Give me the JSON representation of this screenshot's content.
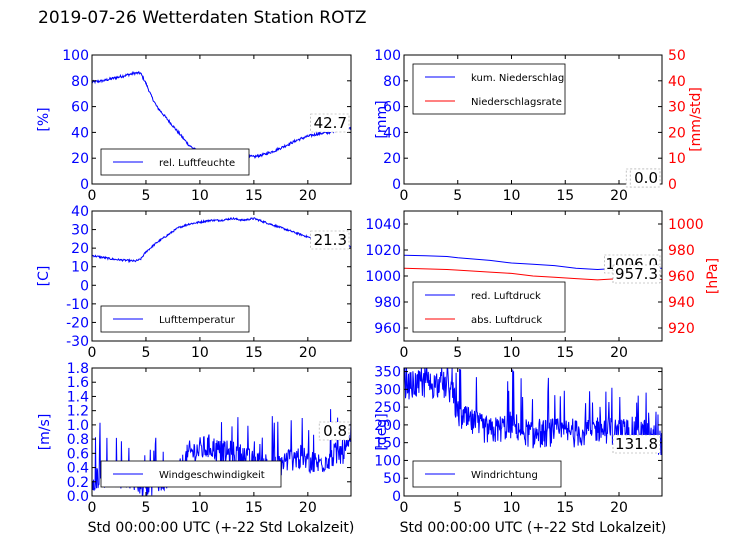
{
  "figure": {
    "title": "2019-07-26 Wetterdaten Station ROTZ",
    "xlabel_left": "Std 00:00:00 UTC (+-22 Std Lokalzeit)",
    "xlabel_right": "Std 00:00:00 UTC (+-22 Std Lokalzeit)"
  },
  "colors": {
    "primary": "#0000ff",
    "secondary": "#ff0000",
    "axis": "#000000"
  },
  "chart_data": [
    {
      "type": "line",
      "panel": "humidity",
      "ylabel": "[%]",
      "ylim": [
        0,
        100
      ],
      "xlim": [
        0,
        24
      ],
      "xticks": [
        0,
        5,
        10,
        15,
        20
      ],
      "yticks": [
        0,
        20,
        40,
        60,
        80,
        100
      ],
      "legend": [
        "rel. Luftfeuchte"
      ],
      "legend_position": "lower-left",
      "current_value": "42.7",
      "series": [
        {
          "name": "rel. Luftfeuchte",
          "color": "#0000ff",
          "noise": 1.0,
          "x": [
            0,
            1,
            2,
            3,
            4,
            4.5,
            5,
            5.5,
            6,
            7,
            8,
            9,
            10,
            11,
            12,
            13,
            14,
            15,
            16,
            17,
            18,
            19,
            20,
            21,
            22,
            23,
            24
          ],
          "y": [
            79,
            80,
            82,
            84,
            86,
            86,
            78,
            68,
            60,
            50,
            40,
            30,
            24,
            23,
            24,
            25,
            22,
            21,
            23,
            26,
            30,
            34,
            37,
            39,
            40,
            43,
            43
          ]
        }
      ]
    },
    {
      "type": "line",
      "panel": "precipitation",
      "ylabel": "[mm]",
      "ylim": [
        0,
        100
      ],
      "xlim": [
        0,
        24
      ],
      "xticks": [
        0,
        5,
        10,
        15,
        20
      ],
      "yticks": [
        0,
        20,
        40,
        60,
        80,
        100
      ],
      "y2label": "[mm/std]",
      "y2lim": [
        0,
        50
      ],
      "y2ticks": [
        0,
        10,
        20,
        30,
        40,
        50
      ],
      "legend": [
        "kum. Niederschlag",
        "Niederschlagsrate"
      ],
      "legend_position": "upper-left",
      "current_value": "0.0",
      "current_value_2": "0.0",
      "series": [
        {
          "name": "kum. Niederschlag",
          "color": "#0000ff",
          "x": [
            0,
            24
          ],
          "y": [
            0,
            0
          ]
        },
        {
          "name": "Niederschlagsrate",
          "color": "#ff0000",
          "axis": "right",
          "x": [
            0,
            24
          ],
          "y": [
            0,
            0
          ]
        }
      ]
    },
    {
      "type": "line",
      "panel": "temperature",
      "ylabel": "[C]",
      "ylim": [
        -30,
        40
      ],
      "xlim": [
        0,
        24
      ],
      "xticks": [
        0,
        5,
        10,
        15,
        20
      ],
      "yticks": [
        -30,
        -20,
        -10,
        0,
        10,
        20,
        30,
        40
      ],
      "legend": [
        "Lufttemperatur"
      ],
      "legend_position": "lower-left",
      "current_value": "21.3",
      "series": [
        {
          "name": "Lufttemperatur",
          "color": "#0000ff",
          "noise": 0.5,
          "x": [
            0,
            1,
            2,
            3,
            4,
            4.5,
            5,
            6,
            7,
            8,
            9,
            10,
            11,
            12,
            13,
            14,
            15,
            16,
            17,
            18,
            19,
            20,
            21,
            22,
            23,
            24
          ],
          "y": [
            16,
            15,
            14,
            13.5,
            13,
            14,
            18,
            23,
            27,
            31,
            33,
            34,
            35,
            35,
            36,
            35,
            36,
            34,
            32,
            30,
            28,
            26,
            24,
            23,
            22,
            21
          ]
        }
      ]
    },
    {
      "type": "line",
      "panel": "pressure",
      "ylabel": "[hPa]",
      "ylabel_side": "right",
      "ylim": [
        950,
        1050
      ],
      "xlim": [
        0,
        24
      ],
      "xticks": [
        0,
        5,
        10,
        15,
        20
      ],
      "yticks": [
        960,
        980,
        1000,
        1020,
        1040
      ],
      "y2lim": [
        910,
        1010
      ],
      "y2ticks": [
        920,
        940,
        960,
        980,
        1000
      ],
      "legend": [
        "red. Luftdruck",
        "abs. Luftdruck"
      ],
      "legend_position": "lower-left",
      "current_value": "1006.0",
      "current_value_2": "957.3",
      "series": [
        {
          "name": "red. Luftdruck",
          "color": "#0000ff",
          "x": [
            0,
            2,
            4,
            5,
            8,
            10,
            12,
            14,
            16,
            18,
            20,
            22,
            24
          ],
          "y": [
            1016,
            1015.5,
            1015,
            1014,
            1012,
            1010,
            1009,
            1008,
            1006,
            1005,
            1006,
            1006,
            1006
          ]
        },
        {
          "name": "abs. Luftdruck",
          "color": "#ff0000",
          "axis": "right",
          "x": [
            0,
            2,
            4,
            5,
            8,
            10,
            12,
            14,
            16,
            18,
            20,
            22,
            24
          ],
          "y": [
            966,
            965.5,
            965,
            964.5,
            963,
            962,
            960,
            959,
            958,
            957,
            958,
            958,
            957.3
          ]
        }
      ]
    },
    {
      "type": "line",
      "panel": "wind-speed",
      "ylabel": "[m/s]",
      "ylim": [
        0,
        1.8
      ],
      "xlim": [
        0,
        24
      ],
      "xticks": [
        0,
        5,
        10,
        15,
        20
      ],
      "yticks": [
        0.0,
        0.2,
        0.4,
        0.6,
        0.8,
        1.0,
        1.2,
        1.4,
        1.6,
        1.8
      ],
      "legend": [
        "Windgeschwindigkeit"
      ],
      "legend_position": "lower-left",
      "current_value": "0.8",
      "series": [
        {
          "name": "Windgeschwindigkeit",
          "color": "#0000ff",
          "noise": 0.18,
          "spiky": true,
          "x": [
            0,
            2,
            4,
            5,
            6,
            7,
            8,
            9,
            10,
            11,
            12,
            13,
            14,
            15,
            16,
            17,
            18,
            19,
            20,
            21,
            22,
            23,
            24
          ],
          "y": [
            0.25,
            0.3,
            0.25,
            0.15,
            0.2,
            0.25,
            0.3,
            0.6,
            0.65,
            0.7,
            0.6,
            0.6,
            0.55,
            0.45,
            0.45,
            0.4,
            0.5,
            0.55,
            0.5,
            0.45,
            0.55,
            0.6,
            0.7
          ]
        }
      ]
    },
    {
      "type": "line",
      "panel": "wind-direction",
      "ylabel": "[deg]",
      "ylim": [
        0,
        360
      ],
      "xlim": [
        0,
        24
      ],
      "xticks": [
        0,
        5,
        10,
        15,
        20
      ],
      "yticks": [
        0,
        50,
        100,
        150,
        200,
        250,
        300,
        350
      ],
      "legend": [
        "Windrichtung"
      ],
      "legend_position": "lower-left",
      "current_value": "131.8",
      "series": [
        {
          "name": "Windrichtung",
          "color": "#0000ff",
          "noise": 40,
          "spiky": true,
          "x": [
            0,
            2,
            4,
            4.5,
            5,
            6,
            8,
            10,
            12,
            14,
            16,
            18,
            20,
            22,
            24
          ],
          "y": [
            310,
            315,
            310,
            290,
            230,
            210,
            180,
            200,
            170,
            180,
            175,
            190,
            180,
            185,
            150
          ]
        }
      ]
    }
  ]
}
